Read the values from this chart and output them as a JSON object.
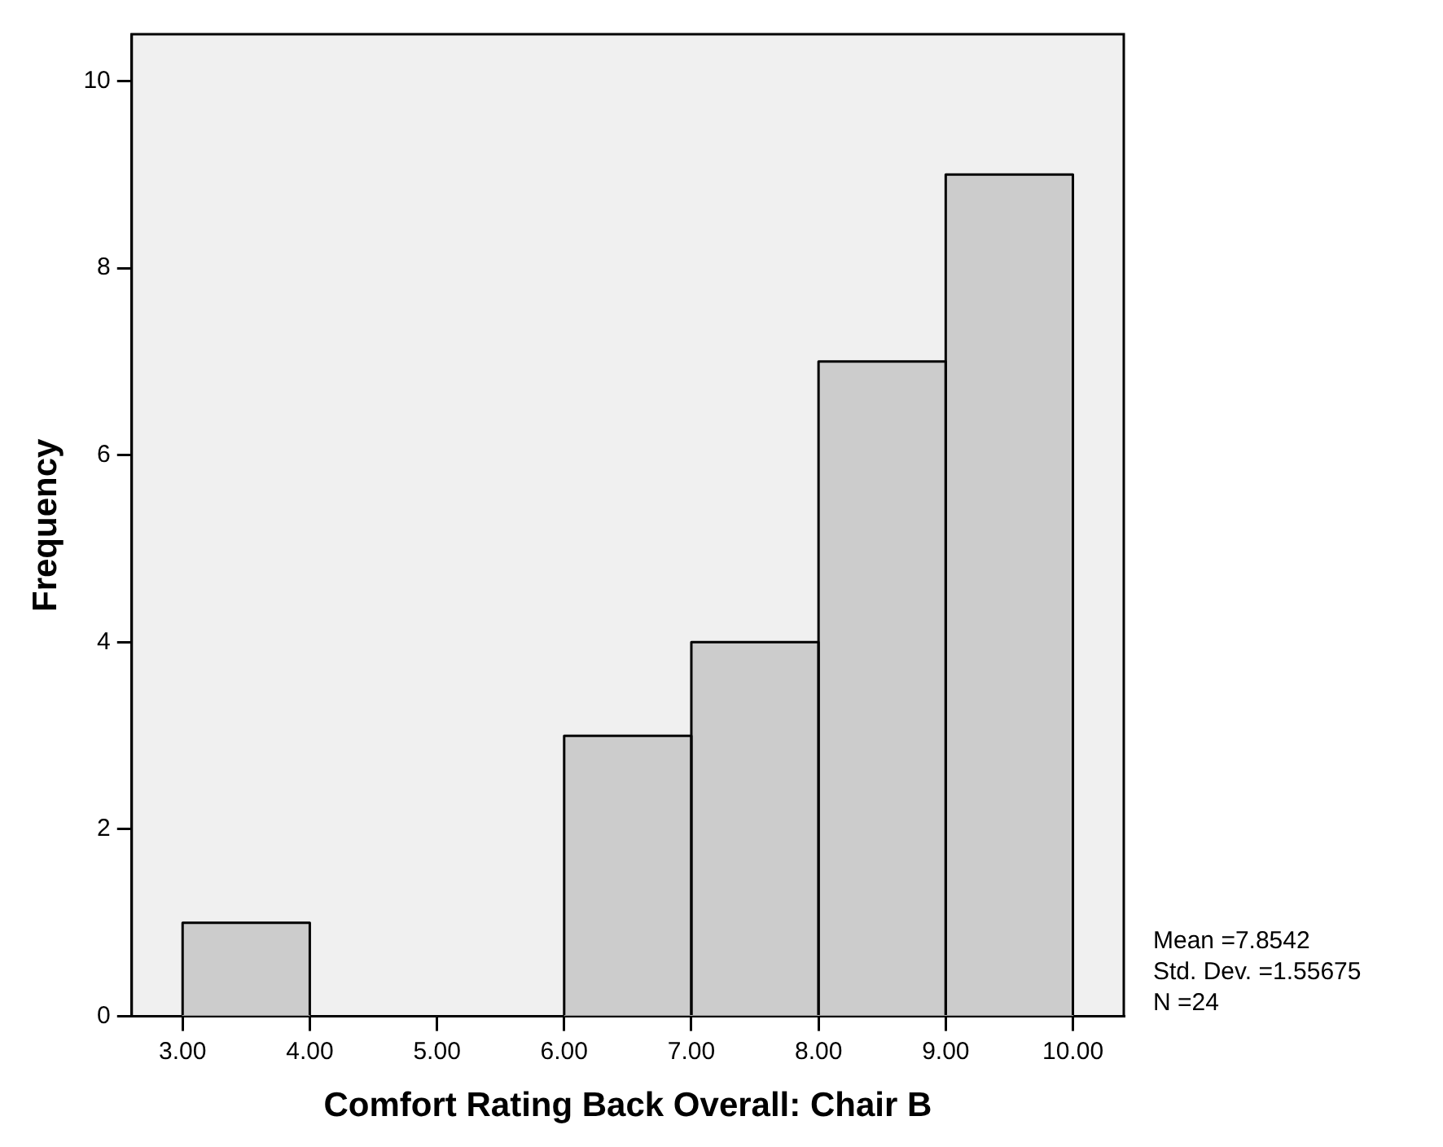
{
  "chart_data": {
    "type": "histogram",
    "xlabel": "Comfort Rating Back Overall: Chair B",
    "ylabel": "Frequency",
    "bins": [
      3,
      4,
      5,
      6,
      7,
      8,
      9,
      10
    ],
    "values": [
      1,
      0,
      0,
      3,
      4,
      7,
      9
    ],
    "color": "#cccccc",
    "xlim": [
      2.6,
      10.4
    ],
    "xticks": [
      {
        "value": 3,
        "label": "3.00"
      },
      {
        "value": 4,
        "label": "4.00"
      },
      {
        "value": 5,
        "label": "5.00"
      },
      {
        "value": 6,
        "label": "6.00"
      },
      {
        "value": 7,
        "label": "7.00"
      },
      {
        "value": 8,
        "label": "8.00"
      },
      {
        "value": 9,
        "label": "9.00"
      },
      {
        "value": 10,
        "label": "10.00"
      }
    ],
    "ylim": [
      0,
      10.5
    ],
    "yticks": [
      0,
      2,
      4,
      6,
      8,
      10
    ],
    "annotations": [
      "Mean =7.8542",
      "Std. Dev. =1.55675",
      "N =24"
    ]
  }
}
